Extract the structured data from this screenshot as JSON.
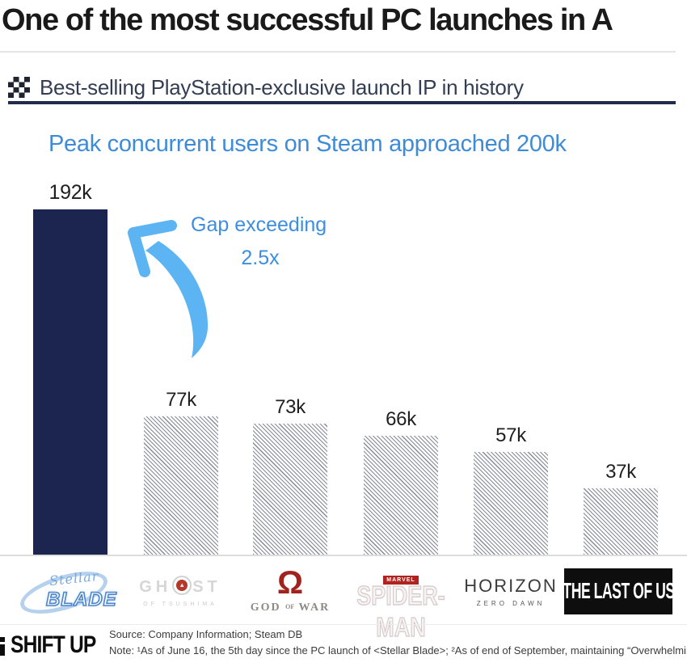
{
  "page_title": "One of the most successful PC launches in A",
  "header": {
    "badge_icon": "checkered-flag-icon",
    "title": "Best-selling PlayStation-exclusive launch IP in history"
  },
  "annotation": {
    "line1": "Gap exceeding",
    "line2": "2.5x"
  },
  "chart_data": {
    "type": "bar",
    "title": "Peak concurrent users on Steam approached 200k",
    "categories": [
      "Stellar Blade",
      "Ghost of Tsushima",
      "God of War",
      "Marvel's Spider-Man",
      "Horizon Zero Dawn",
      "The Last of Us"
    ],
    "values": [
      192,
      77,
      73,
      66,
      57,
      37
    ],
    "labels": [
      "192k",
      "77k",
      "73k",
      "66k",
      "57k",
      "37k"
    ],
    "unit": "thousand peak concurrent Steam users",
    "ylim": [
      0,
      200
    ],
    "grid": false,
    "legend": "none",
    "highlight_index": 0,
    "highlight_color": "#1b2550",
    "hatch_color": "#69707e",
    "annotation": "Gap exceeding 2.5x"
  },
  "colors": {
    "accent_blue": "#3e8bd8",
    "arrow_blue": "#5cb5f2",
    "navy": "#202c4a",
    "bar_navy": "#1b2550"
  },
  "logos": {
    "stellar_blade": {
      "script": "Stellar",
      "word": "BLADE"
    },
    "ghost": {
      "left": "GH",
      "right": "ST",
      "sub": "OF TSUSHIMA"
    },
    "god_of_war": {
      "symbol": "Ω",
      "g1": "GOD",
      "of": "OF",
      "g2": "WAR"
    },
    "spider_man": {
      "badge": "MARVEL",
      "name": "SPIDER-MAN"
    },
    "horizon": {
      "name": "HORIZON",
      "sub": "ZERO DAWN"
    },
    "last_of_us": {
      "name": "THE LAST OF US"
    }
  },
  "footer": {
    "brand": "SHIFT UP",
    "source": "Source: Company Information; Steam DB",
    "note": "Note: ¹As of June 16, the 5th day since the PC launch of <Stellar Blade>; ²As of end of September, maintaining “Overwhelmin"
  }
}
